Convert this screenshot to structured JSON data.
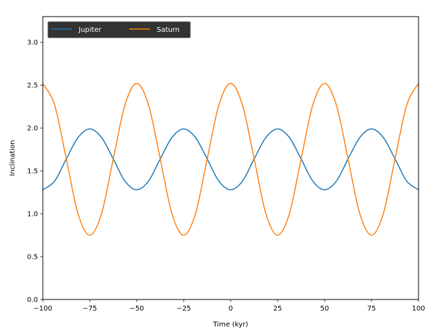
{
  "chart_data": {
    "type": "line",
    "xlabel": "Time (kyr)",
    "ylabel": "Inclination",
    "xlim": [
      -100,
      100
    ],
    "ylim": [
      0,
      3.3
    ],
    "xticks": [
      -100,
      -75,
      -50,
      -25,
      0,
      25,
      50,
      75,
      100
    ],
    "xtick_labels": [
      "−100",
      "−75",
      "−50",
      "−25",
      "0",
      "25",
      "50",
      "75",
      "100"
    ],
    "yticks": [
      0.0,
      0.5,
      1.0,
      1.5,
      2.0,
      2.5,
      3.0
    ],
    "ytick_labels": [
      "0.0",
      "0.5",
      "1.0",
      "1.5",
      "2.0",
      "2.5",
      "3.0"
    ],
    "grid": false,
    "legend": {
      "placement": "top-left",
      "columns": 2,
      "background": "#333333"
    },
    "series": [
      {
        "name": "Jupiter",
        "color": "#1f77b4",
        "x": [
          -100,
          -93.75,
          -87.5,
          -81.25,
          -75,
          -68.75,
          -62.5,
          -56.25,
          -50,
          -43.75,
          -37.5,
          -31.25,
          -25,
          -18.75,
          -12.5,
          -6.25,
          0,
          6.25,
          12.5,
          18.75,
          25,
          31.25,
          37.5,
          43.75,
          50,
          56.25,
          62.5,
          68.75,
          75,
          81.25,
          87.5,
          93.75,
          100
        ],
        "y": [
          1.28,
          1.38,
          1.64,
          1.89,
          1.99,
          1.89,
          1.64,
          1.38,
          1.28,
          1.38,
          1.64,
          1.89,
          1.99,
          1.89,
          1.64,
          1.38,
          1.28,
          1.38,
          1.64,
          1.89,
          1.99,
          1.89,
          1.64,
          1.38,
          1.28,
          1.38,
          1.64,
          1.89,
          1.99,
          1.89,
          1.64,
          1.38,
          1.28
        ]
      },
      {
        "name": "Saturn",
        "color": "#ff7f0e",
        "x": [
          -100,
          -93.75,
          -87.5,
          -81.25,
          -75,
          -68.75,
          -62.5,
          -56.25,
          -50,
          -43.75,
          -37.5,
          -31.25,
          -25,
          -18.75,
          -12.5,
          -6.25,
          0,
          6.25,
          12.5,
          18.75,
          25,
          31.25,
          37.5,
          43.75,
          50,
          56.25,
          62.5,
          68.75,
          75,
          81.25,
          87.5,
          93.75,
          100
        ],
        "y": [
          2.52,
          2.27,
          1.64,
          1.0,
          0.75,
          1.0,
          1.64,
          2.27,
          2.52,
          2.27,
          1.64,
          1.0,
          0.75,
          1.0,
          1.64,
          2.27,
          2.52,
          2.27,
          1.64,
          1.0,
          0.75,
          1.0,
          1.64,
          2.27,
          2.52,
          2.27,
          1.64,
          1.0,
          0.75,
          1.0,
          1.64,
          2.27,
          2.52
        ]
      }
    ]
  }
}
